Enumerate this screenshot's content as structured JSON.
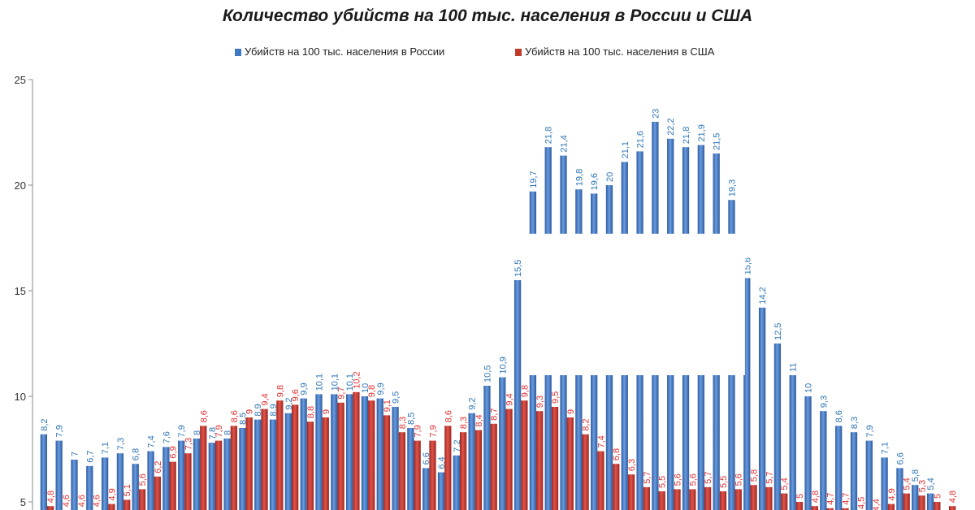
{
  "chart_data": {
    "type": "bar",
    "title": "Количество убийств на 100 тыс. населения в России и США",
    "xlabel": "",
    "ylabel": "",
    "ylim": [
      5,
      25
    ],
    "yticks": [
      "5",
      "10",
      "15",
      "20",
      "25"
    ],
    "grid": false,
    "legend_position": "top",
    "axis_break": {
      "from": 11,
      "to": 17.7
    },
    "series": [
      {
        "name": "Убийств на 100 тыс. населения в России",
        "color": "#3f78c0",
        "label_color": "#2e75b6",
        "values": [
          8.2,
          7.9,
          7,
          6.7,
          7.1,
          7.3,
          6.8,
          7.4,
          7.6,
          7.9,
          8,
          7.8,
          8,
          8.5,
          8.9,
          8.9,
          9.2,
          9.9,
          10.1,
          10.1,
          10.1,
          10,
          9.9,
          9.5,
          8.5,
          6.6,
          6.4,
          7.2,
          9.2,
          10.5,
          10.9,
          15.5,
          19.7,
          21.8,
          21.4,
          19.8,
          19.6,
          20,
          21.1,
          21.6,
          23,
          22.2,
          21.8,
          21.9,
          21.5,
          19.3,
          15.6,
          14.2,
          12.5,
          11,
          10,
          9.3,
          8.6,
          8.3,
          7.9,
          7.1,
          6.6,
          5.8,
          5.4
        ],
        "labels": [
          "8,2",
          "7,9",
          "7",
          "6,7",
          "7,1",
          "7,3",
          "6,8",
          "7,4",
          "7,6",
          "7,9",
          "8",
          "7,8",
          "8",
          "8,5",
          "8,9",
          "8,9",
          "9,2",
          "9,9",
          "10,1",
          "10,1",
          "10,1",
          "10",
          "9,9",
          "9,5",
          "8,5",
          "6,6",
          "6,4",
          "7,2",
          "9,2",
          "10,5",
          "10,9",
          "15,5",
          "19,7",
          "21,8",
          "21,4",
          "19,8",
          "19,6",
          "20",
          "21,1",
          "21,6",
          "23",
          "22,2",
          "21,8",
          "21,9",
          "21,5",
          "19,3",
          "15,6",
          "14,2",
          "12,5",
          "11",
          "10",
          "9,3",
          "8,6",
          "8,3",
          "7,9",
          "7,1",
          "6,6",
          "5,8",
          "5,4"
        ]
      },
      {
        "name": "Убийств на 100 тыс. населения в США",
        "color": "#c0392b",
        "label_color": "#e03030",
        "values": [
          4.8,
          4.6,
          4.6,
          4.6,
          4.9,
          5.1,
          5.6,
          6.2,
          6.9,
          7.3,
          8.6,
          7.9,
          8.6,
          9,
          9.4,
          9.8,
          9.6,
          8.8,
          9,
          9.7,
          10.2,
          9.8,
          9.1,
          8.3,
          7.9,
          7.9,
          8.6,
          8.3,
          8.4,
          8.7,
          9.4,
          9.8,
          9.3,
          9.5,
          9,
          8.2,
          7.4,
          6.8,
          6.3,
          5.7,
          5.5,
          5.6,
          5.6,
          5.7,
          5.5,
          5.6,
          5.8,
          5.7,
          5.4,
          5,
          4.8,
          4.7,
          4.7,
          4.5,
          4.4,
          4.9,
          5.4,
          5.3,
          5,
          4.8
        ],
        "labels": [
          "4,8",
          "4,6",
          "4,6",
          "4,6",
          "4,9",
          "5,1",
          "5,6",
          "6,2",
          "6,9",
          "7,3",
          "8,6",
          "7,9",
          "8,6",
          "9",
          "9,4",
          "9,8",
          "9,6",
          "8,8",
          "9",
          "9,7",
          "10,2",
          "9,8",
          "9,1",
          "8,3",
          "7,9",
          "7,9",
          "8,6",
          "8,3",
          "8,4",
          "8,7",
          "9,4",
          "9,8",
          "9,3",
          "9,5",
          "9",
          "8,2",
          "7,4",
          "6,8",
          "6,3",
          "5,7",
          "5,5",
          "5,6",
          "5,6",
          "5,7",
          "5,5",
          "5,6",
          "5,8",
          "5,7",
          "5,4",
          "5",
          "4,8",
          "4,7",
          "4,7",
          "4,5",
          "4,4",
          "4,9",
          "5,4",
          "5,3",
          "5",
          "4,8"
        ]
      }
    ]
  }
}
